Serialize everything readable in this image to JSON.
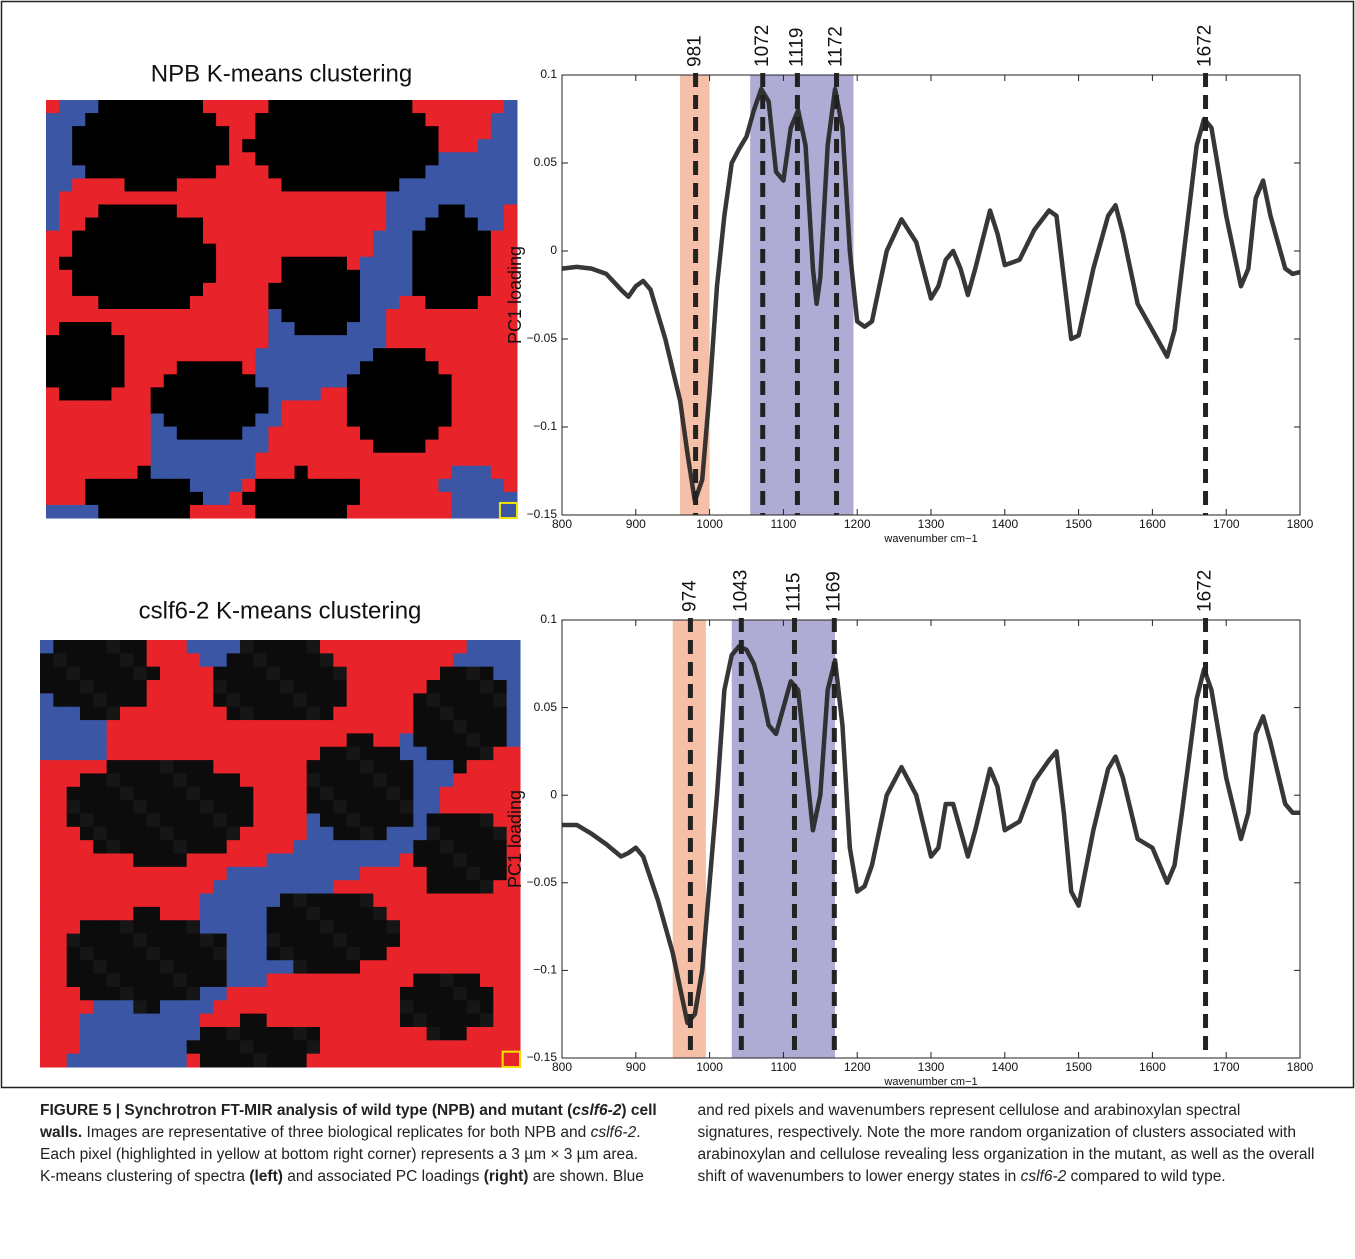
{
  "maps": [
    {
      "title": "NPB K-means clustering"
    },
    {
      "title": "cslf6-2 K-means clustering"
    }
  ],
  "chart_data": [
    {
      "type": "line",
      "color": "#262626",
      "x": [
        800,
        820,
        840,
        860,
        880,
        890,
        900,
        910,
        920,
        940,
        960,
        970,
        980,
        990,
        1000,
        1010,
        1020,
        1030,
        1040,
        1050,
        1060,
        1070,
        1080,
        1090,
        1100,
        1110,
        1120,
        1130,
        1140,
        1145,
        1150,
        1160,
        1170,
        1180,
        1190,
        1200,
        1210,
        1220,
        1240,
        1260,
        1280,
        1300,
        1310,
        1320,
        1330,
        1340,
        1350,
        1360,
        1380,
        1390,
        1400,
        1420,
        1440,
        1460,
        1470,
        1480,
        1490,
        1500,
        1520,
        1540,
        1550,
        1560,
        1580,
        1600,
        1620,
        1630,
        1640,
        1660,
        1670,
        1680,
        1700,
        1720,
        1730,
        1740,
        1750,
        1760,
        1780,
        1790,
        1800
      ],
      "values": [
        -0.01,
        -0.009,
        -0.01,
        -0.013,
        -0.022,
        -0.026,
        -0.02,
        -0.017,
        -0.022,
        -0.05,
        -0.085,
        -0.115,
        -0.142,
        -0.13,
        -0.08,
        -0.02,
        0.02,
        0.05,
        0.058,
        0.065,
        0.08,
        0.092,
        0.085,
        0.045,
        0.04,
        0.07,
        0.08,
        0.06,
        -0.01,
        -0.03,
        -0.015,
        0.06,
        0.092,
        0.07,
        0.0,
        -0.04,
        -0.043,
        -0.04,
        0.0,
        0.018,
        0.005,
        -0.027,
        -0.02,
        -0.005,
        0.0,
        -0.01,
        -0.025,
        -0.01,
        0.023,
        0.01,
        -0.008,
        -0.005,
        0.012,
        0.023,
        0.02,
        -0.015,
        -0.05,
        -0.048,
        -0.01,
        0.02,
        0.026,
        0.01,
        -0.03,
        -0.045,
        -0.06,
        -0.045,
        -0.01,
        0.06,
        0.075,
        0.07,
        0.02,
        -0.02,
        -0.01,
        0.03,
        0.04,
        0.02,
        -0.01,
        -0.013,
        -0.012
      ],
      "xlim": [
        800,
        1800
      ],
      "ylim": [
        -0.15,
        0.1
      ],
      "xticks": [
        800,
        900,
        1000,
        1100,
        1200,
        1300,
        1400,
        1500,
        1600,
        1700,
        1800
      ],
      "yticks": [
        {
          "value": -0.15,
          "label": "−0.15"
        },
        {
          "value": -0.1,
          "label": "−0.1"
        },
        {
          "value": -0.05,
          "label": "−0.05"
        },
        0,
        0.05,
        0.1
      ],
      "xlabel": "wavenumber cm−1",
      "ylabel": "PC1 loading",
      "peaks": [
        981,
        1072,
        1119,
        1172,
        1672
      ],
      "shaded_ranges": [
        {
          "range": [
            960,
            1000
          ],
          "color": "#f2a98b"
        },
        {
          "range": [
            1055,
            1195
          ],
          "color": "#9390c7"
        }
      ]
    },
    {
      "type": "line",
      "color": "#262626",
      "x": [
        800,
        820,
        840,
        860,
        880,
        890,
        900,
        910,
        930,
        950,
        960,
        970,
        980,
        990,
        1000,
        1010,
        1020,
        1030,
        1040,
        1050,
        1060,
        1070,
        1080,
        1090,
        1100,
        1110,
        1120,
        1130,
        1140,
        1150,
        1160,
        1170,
        1180,
        1190,
        1200,
        1210,
        1220,
        1240,
        1260,
        1280,
        1300,
        1310,
        1320,
        1330,
        1340,
        1350,
        1360,
        1380,
        1390,
        1400,
        1420,
        1440,
        1460,
        1470,
        1480,
        1490,
        1500,
        1520,
        1540,
        1550,
        1560,
        1580,
        1600,
        1620,
        1630,
        1640,
        1660,
        1670,
        1680,
        1700,
        1720,
        1730,
        1740,
        1750,
        1760,
        1780,
        1790,
        1800
      ],
      "values": [
        -0.017,
        -0.017,
        -0.022,
        -0.028,
        -0.035,
        -0.033,
        -0.03,
        -0.035,
        -0.06,
        -0.09,
        -0.11,
        -0.13,
        -0.125,
        -0.1,
        -0.05,
        0.0,
        0.06,
        0.08,
        0.085,
        0.083,
        0.075,
        0.06,
        0.04,
        0.035,
        0.05,
        0.065,
        0.06,
        0.02,
        -0.02,
        0.0,
        0.06,
        0.077,
        0.04,
        -0.03,
        -0.055,
        -0.052,
        -0.04,
        0.0,
        0.016,
        0.0,
        -0.035,
        -0.03,
        -0.005,
        -0.005,
        -0.02,
        -0.035,
        -0.02,
        0.015,
        0.005,
        -0.02,
        -0.015,
        0.008,
        0.02,
        0.025,
        -0.01,
        -0.055,
        -0.063,
        -0.02,
        0.015,
        0.022,
        0.01,
        -0.025,
        -0.03,
        -0.05,
        -0.04,
        -0.01,
        0.055,
        0.072,
        0.06,
        0.01,
        -0.025,
        -0.01,
        0.035,
        0.045,
        0.03,
        -0.005,
        -0.01,
        -0.01
      ],
      "xlim": [
        800,
        1800
      ],
      "ylim": [
        -0.15,
        0.1
      ],
      "xticks": [
        800,
        900,
        1000,
        1100,
        1200,
        1300,
        1400,
        1500,
        1600,
        1700,
        1800
      ],
      "yticks": [
        {
          "value": -0.15,
          "label": "−0.15"
        },
        {
          "value": -0.1,
          "label": "−0.1"
        },
        {
          "value": -0.05,
          "label": "−0.05"
        },
        0,
        0.05,
        0.1
      ],
      "xlabel": "wavenumber cm−1",
      "ylabel": "PC1 loading",
      "peaks": [
        974,
        1043,
        1115,
        1169,
        1672
      ],
      "shaded_ranges": [
        {
          "range": [
            950,
            995
          ],
          "color": "#f2a98b"
        },
        {
          "range": [
            1030,
            1170
          ],
          "color": "#9390c7"
        }
      ]
    }
  ],
  "caption": [
    {
      "text": "FIGURE 5 | Synchrotron FT-MIR analysis of wild type (NPB) and mutant (",
      "style": "bold"
    },
    {
      "text": "cslf6-2",
      "style": "bold-italic"
    },
    {
      "text": ") cell walls.",
      "style": "bold"
    },
    {
      "text": " Images are representative of three biological replicates for both NPB and ",
      "style": "normal"
    },
    {
      "text": "cslf6-2",
      "style": "italic"
    },
    {
      "text": ". Each pixel (highlighted in yellow at bottom right corner) represents a 3 µm × 3 µm area. K-means clustering of spectra ",
      "style": "normal"
    },
    {
      "text": "(left)",
      "style": "bold"
    },
    {
      "text": " and associated PC loadings ",
      "style": "normal"
    },
    {
      "text": "(right)",
      "style": "bold"
    },
    {
      "text": " are shown. Blue and red pixels and wavenumbers represent cellulose and arabinoxylan spectral signatures, respectively. Note the more random organization of clusters associated with arabinoxylan and cellulose revealing less organization in the mutant, as well as the overall shift of wavenumbers to lower energy states in ",
      "style": "normal"
    },
    {
      "text": "cslf6-2",
      "style": "italic"
    },
    {
      "text": " compared to wild type.",
      "style": "normal"
    }
  ]
}
